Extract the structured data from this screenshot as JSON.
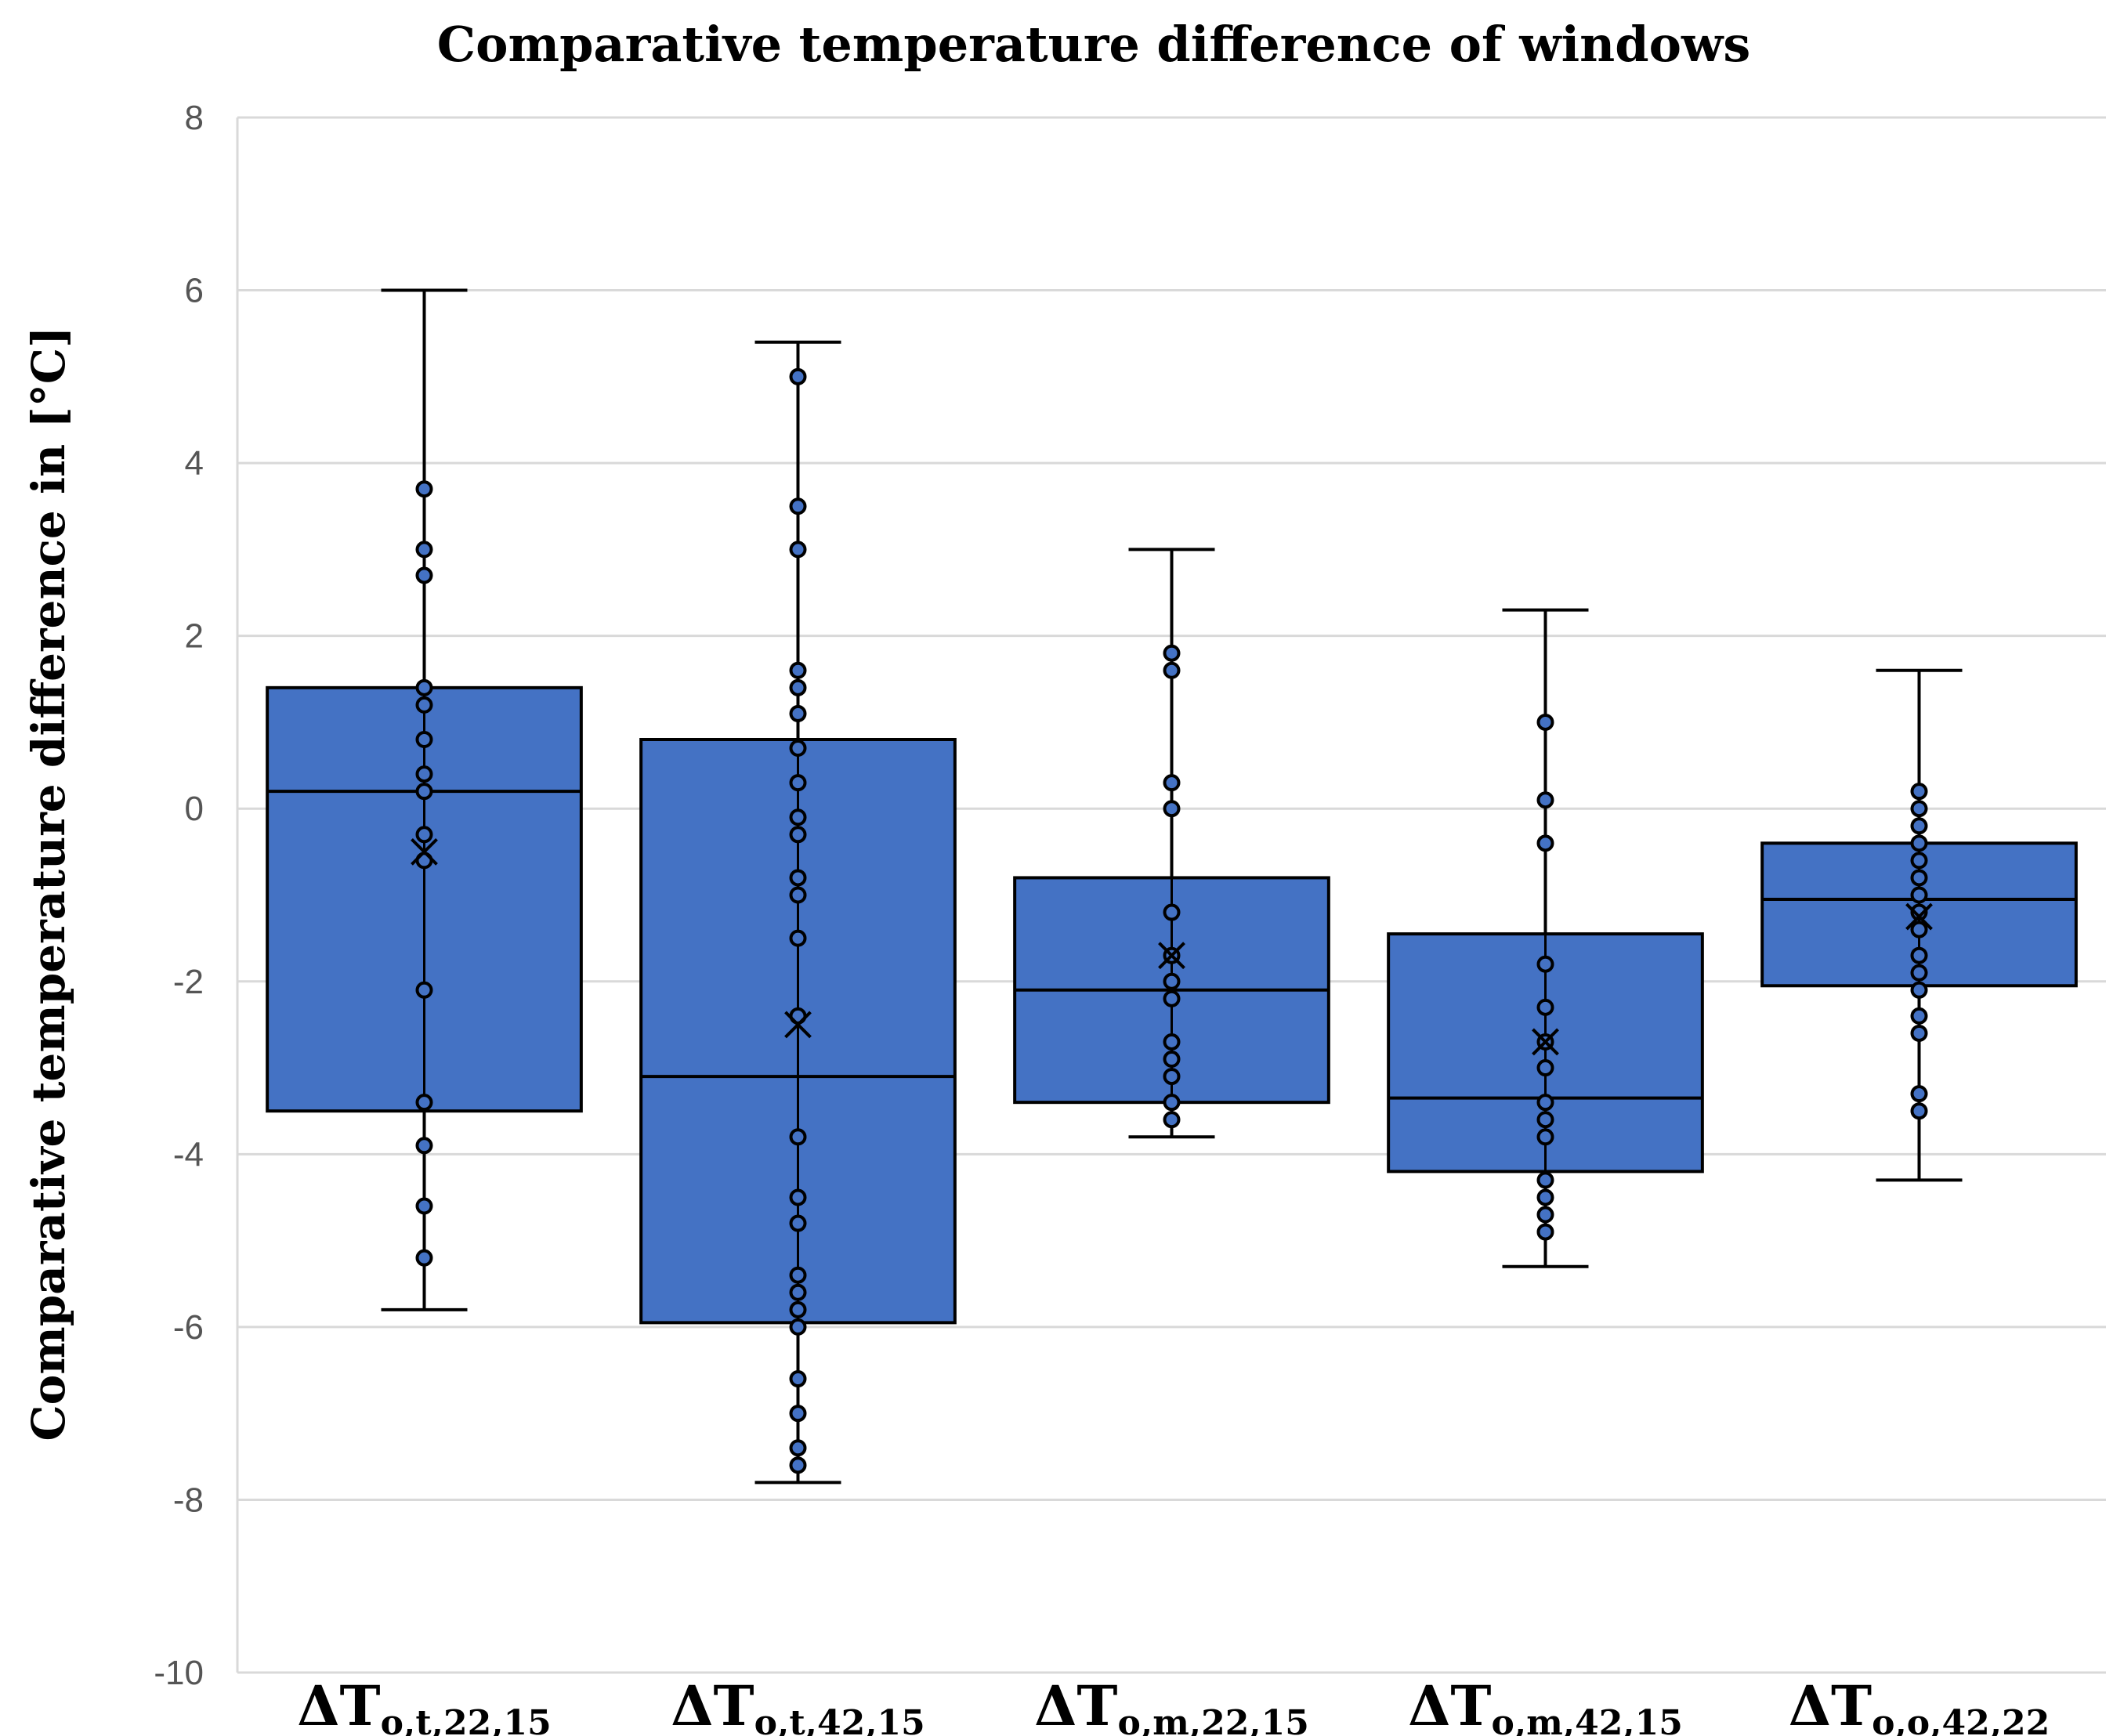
{
  "chart_data": {
    "type": "box",
    "title": "Comparative temperature difference of windows",
    "xlabel": "",
    "ylabel": "Comparative temperature difference in [°C]",
    "ylim": [
      -10,
      8
    ],
    "yticks": [
      8,
      6,
      4,
      2,
      0,
      -2,
      -4,
      -6,
      -8,
      -10
    ],
    "grid": true,
    "colors": {
      "box_fill": "#4472C4",
      "stroke": "#000000",
      "grid": "#d9d9d9",
      "point_fill": "#4472C4"
    },
    "categories": [
      {
        "main": "ΔT",
        "sub": "o,t,22,15"
      },
      {
        "main": "ΔT",
        "sub": "o,t,42,15"
      },
      {
        "main": "ΔT",
        "sub": "o,m,22,15"
      },
      {
        "main": "ΔT",
        "sub": "o,m,42,15"
      },
      {
        "main": "ΔT",
        "sub": "o,o,42,22"
      }
    ],
    "series": [
      {
        "name": "ΔTo,t,22,15",
        "whisker_low": -5.8,
        "q1": -3.5,
        "median": 0.2,
        "q3": 1.4,
        "whisker_high": 6.0,
        "mean": -0.5,
        "points": [
          3.7,
          3.0,
          2.7,
          1.4,
          1.2,
          0.8,
          0.4,
          0.2,
          -0.3,
          -0.6,
          -2.1,
          -3.4,
          -3.9,
          -4.6,
          -5.2
        ]
      },
      {
        "name": "ΔTo,t,42,15",
        "whisker_low": -7.8,
        "q1": -5.95,
        "median": -3.1,
        "q3": 0.8,
        "whisker_high": 5.4,
        "mean": -2.5,
        "points": [
          5.0,
          3.5,
          3.0,
          1.6,
          1.4,
          1.1,
          0.7,
          0.3,
          -0.1,
          -0.3,
          -0.8,
          -1.0,
          -1.5,
          -2.4,
          -3.8,
          -4.5,
          -4.8,
          -5.4,
          -5.6,
          -5.8,
          -6.0,
          -6.6,
          -7.0,
          -7.4,
          -7.6
        ]
      },
      {
        "name": "ΔTo,m,22,15",
        "whisker_low": -3.8,
        "q1": -3.4,
        "median": -2.1,
        "q3": -0.8,
        "whisker_high": 3.0,
        "mean": -1.7,
        "points": [
          1.8,
          1.6,
          0.3,
          0.0,
          -1.2,
          -1.7,
          -2.0,
          -2.2,
          -2.7,
          -2.9,
          -3.1,
          -3.4,
          -3.6
        ]
      },
      {
        "name": "ΔTo,m,42,15",
        "whisker_low": -5.3,
        "q1": -4.2,
        "median": -3.35,
        "q3": -1.45,
        "whisker_high": 2.3,
        "mean": -2.7,
        "points": [
          1.0,
          0.1,
          -0.4,
          -1.8,
          -2.3,
          -2.7,
          -3.0,
          -3.4,
          -3.6,
          -3.8,
          -4.3,
          -4.5,
          -4.7,
          -4.9
        ]
      },
      {
        "name": "ΔTo,o,42,22",
        "whisker_low": -4.3,
        "q1": -2.05,
        "median": -1.05,
        "q3": -0.4,
        "whisker_high": 1.6,
        "mean": -1.25,
        "points": [
          0.2,
          0.0,
          -0.2,
          -0.4,
          -0.6,
          -0.8,
          -1.0,
          -1.2,
          -1.4,
          -1.7,
          -1.9,
          -2.1,
          -2.4,
          -2.6,
          -3.3,
          -3.5
        ]
      }
    ]
  }
}
